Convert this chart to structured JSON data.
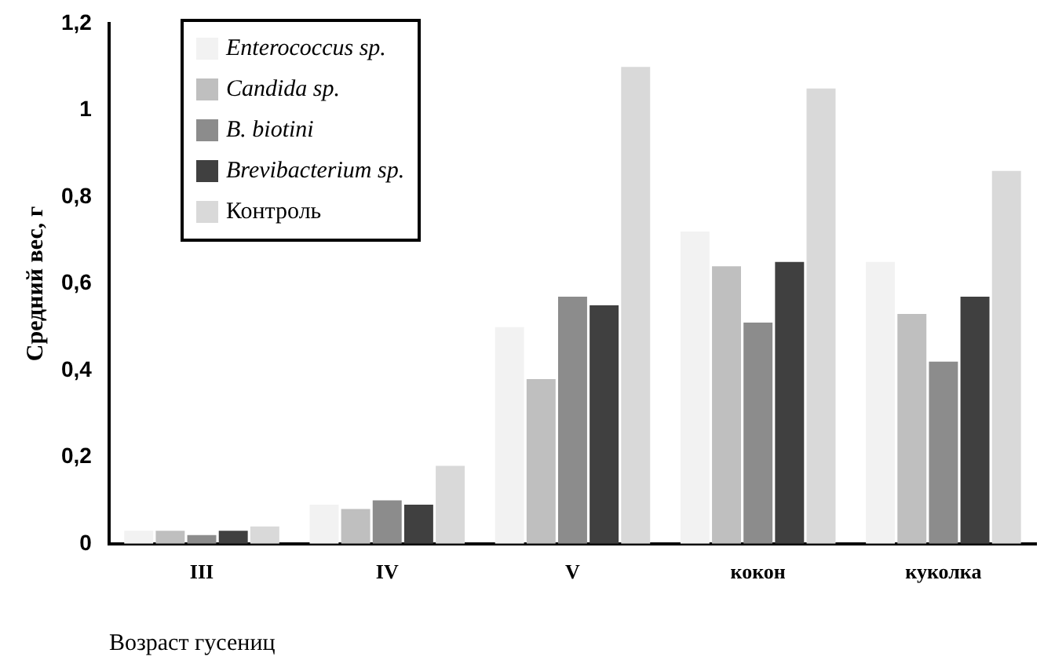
{
  "chart_data": {
    "type": "bar",
    "ylabel": "Средний вес, г",
    "xlabel": "Возраст гусениц",
    "categories": [
      "III",
      "IV",
      "V",
      "кокон",
      "куколка"
    ],
    "series": [
      {
        "name": "Enterococcus sp.",
        "color": "#f2f2f2",
        "values": [
          0.03,
          0.09,
          0.5,
          0.72,
          0.65
        ]
      },
      {
        "name": "Candida sp.",
        "color": "#bfbfbf",
        "values": [
          0.03,
          0.08,
          0.38,
          0.64,
          0.53
        ]
      },
      {
        "name": "B. biotini",
        "color": "#8c8c8c",
        "values": [
          0.02,
          0.1,
          0.57,
          0.51,
          0.42
        ]
      },
      {
        "name": "Brevibacterium sp.",
        "color": "#404040",
        "values": [
          0.03,
          0.09,
          0.55,
          0.65,
          0.57
        ]
      },
      {
        "name": "Контроль",
        "color": "#d9d9d9",
        "values": [
          0.04,
          0.18,
          1.1,
          1.05,
          0.86
        ]
      }
    ],
    "ylim": [
      0,
      1.2
    ],
    "yticks": [
      0,
      {
        "value": 0.2,
        "label": "0,2"
      },
      {
        "value": 0.4,
        "label": "0,4"
      },
      {
        "value": 0.6,
        "label": "0,6"
      },
      {
        "value": 0.8,
        "label": "0,8"
      },
      1,
      {
        "value": 1.2,
        "label": "1,2"
      }
    ],
    "grid": false,
    "legend": "top left"
  }
}
